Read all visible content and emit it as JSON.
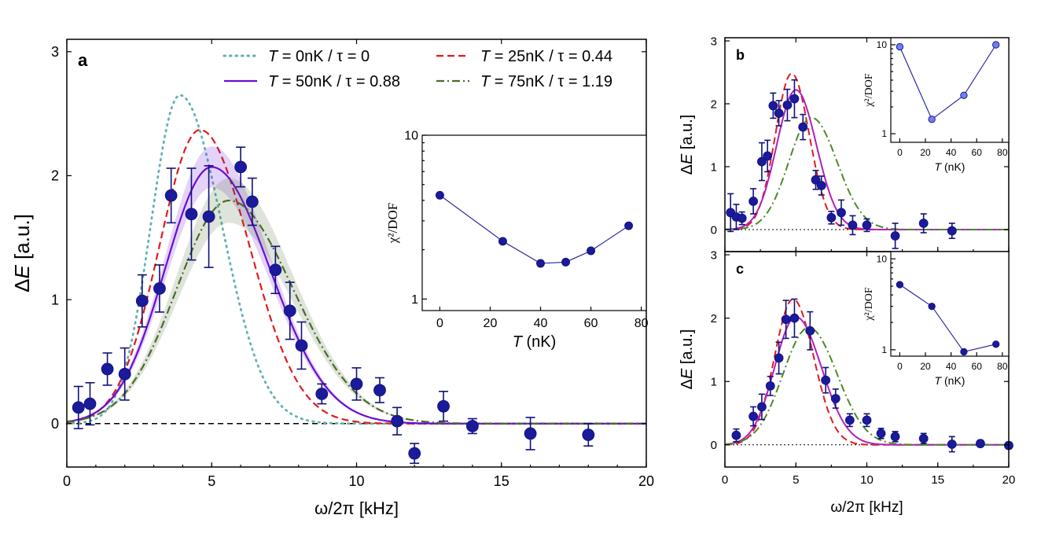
{
  "chart_data": [
    {
      "panel": "a",
      "type": "line",
      "xlabel": "ω/2π [kHz]",
      "ylabel_prefix": "Δ",
      "ylabel_var": "E",
      "ylabel_unit": "[a.u.]",
      "xlim": [
        0,
        20
      ],
      "ylim": [
        -0.35,
        3.1
      ],
      "xticks": [
        0,
        5,
        10,
        15,
        20
      ],
      "yticks": [
        0,
        1,
        2,
        3
      ],
      "baseline": 0,
      "legend_var": "T",
      "series": [
        {
          "name": " = 0nK / τ = 0",
          "style": "dotted",
          "color": "#5fb3b3",
          "model": {
            "A": 2.65,
            "mu": 3.9,
            "sl": 1.0,
            "sr": 1.45
          }
        },
        {
          "name": " = 25nK / τ = 0.44",
          "style": "dashed",
          "color": "#e31a1c",
          "model": {
            "A": 2.37,
            "mu": 4.6,
            "sl": 1.4,
            "sr": 1.7
          }
        },
        {
          "name": " = 50nK / τ = 0.88",
          "style": "solid",
          "color": "#6a0dd6",
          "model": {
            "A": 2.07,
            "mu": 5.0,
            "sl": 1.6,
            "sr": 2.0
          },
          "band": 0.08
        },
        {
          "name": " = 75nK / τ = 1.19",
          "style": "dashdot",
          "color": "#4a6b2a",
          "model": {
            "A": 1.8,
            "mu": 5.6,
            "sl": 1.8,
            "sr": 2.2
          },
          "band": 0.1
        }
      ],
      "points": {
        "x": [
          0.4,
          0.8,
          1.4,
          2.0,
          2.6,
          3.2,
          3.6,
          4.3,
          4.9,
          6.0,
          6.4,
          7.2,
          7.7,
          8.1,
          8.8,
          10.0,
          10.8,
          11.4,
          12.0,
          13.0,
          14.0,
          16.0,
          18.0
        ],
        "y": [
          0.13,
          0.16,
          0.44,
          0.4,
          0.99,
          1.09,
          1.84,
          1.69,
          1.67,
          2.07,
          1.79,
          1.24,
          0.91,
          0.63,
          0.24,
          0.32,
          0.27,
          0.02,
          -0.24,
          0.14,
          -0.02,
          -0.08,
          -0.09
        ],
        "err": [
          0.17,
          0.17,
          0.13,
          0.21,
          0.21,
          0.19,
          0.22,
          0.37,
          0.41,
          0.16,
          0.19,
          0.19,
          0.23,
          0.19,
          0.08,
          0.13,
          0.1,
          0.11,
          0.08,
          0.12,
          0.06,
          0.13,
          0.09
        ]
      },
      "inset": {
        "xlabel_var": "T",
        "xlabel_unit": " (nK)",
        "ylabel": "χ²/DOF",
        "xlim": [
          -7,
          82
        ],
        "ylim_log": [
          0.85,
          10
        ],
        "xticks": [
          0,
          20,
          40,
          60,
          80
        ],
        "yticks": [
          1,
          10
        ],
        "x": [
          0,
          25,
          40,
          50,
          60,
          75
        ],
        "y": [
          4.3,
          2.25,
          1.65,
          1.68,
          1.97,
          2.8
        ]
      }
    },
    {
      "panel": "b",
      "type": "line",
      "xlim": [
        0,
        20
      ],
      "ylim": [
        -0.35,
        3.05
      ],
      "xticks": [
        0,
        5,
        10,
        15,
        20
      ],
      "yticks": [
        0,
        1,
        2,
        3
      ],
      "ylabel_prefix": "Δ",
      "ylabel_var": "E",
      "ylabel_unit": "[a.u.]",
      "series": [
        {
          "style": "dashed",
          "color": "#e31a1c",
          "model": {
            "A": 2.48,
            "mu": 4.7,
            "sl": 1.15,
            "sr": 1.25
          }
        },
        {
          "style": "solid",
          "color": "#b020c0",
          "model": {
            "A": 2.22,
            "mu": 5.0,
            "sl": 1.35,
            "sr": 1.45
          }
        },
        {
          "style": "dashdot",
          "color": "#4a8a2a",
          "model": {
            "A": 1.78,
            "mu": 6.1,
            "sl": 1.6,
            "sr": 1.8
          }
        }
      ],
      "points": {
        "x": [
          0.4,
          0.8,
          1.2,
          2.0,
          2.6,
          3.0,
          3.4,
          3.8,
          4.4,
          4.9,
          5.5,
          6.4,
          6.8,
          7.5,
          8.2,
          9.0,
          10.0,
          12.0,
          14.0,
          16.0
        ],
        "y": [
          0.27,
          0.2,
          0.18,
          0.45,
          1.08,
          1.17,
          1.97,
          1.85,
          1.98,
          2.08,
          1.63,
          0.79,
          0.7,
          0.19,
          0.27,
          0.07,
          0.07,
          -0.1,
          0.1,
          -0.02
        ],
        "err": [
          0.3,
          0.2,
          0.1,
          0.2,
          0.3,
          0.25,
          0.2,
          0.2,
          0.25,
          0.3,
          0.2,
          0.15,
          0.15,
          0.1,
          0.2,
          0.15,
          0.1,
          0.2,
          0.15,
          0.12
        ]
      },
      "inset": {
        "xlabel_var": "T",
        "xlabel_unit": " (nK)",
        "ylabel": "χ²/DOF",
        "xlim": [
          -7,
          85
        ],
        "ylim_log": [
          0.8,
          12
        ],
        "xticks": [
          0,
          20,
          40,
          60,
          80
        ],
        "yticks": [
          1,
          10
        ],
        "x": [
          0,
          25,
          50,
          75
        ],
        "y": [
          9.5,
          1.45,
          2.7,
          10.0
        ]
      }
    },
    {
      "panel": "c",
      "type": "line",
      "xlabel": "ω/2π [kHz]",
      "xlim": [
        0,
        20
      ],
      "ylim": [
        -0.35,
        3.05
      ],
      "xticks": [
        0,
        5,
        10,
        15,
        20
      ],
      "yticks": [
        0,
        1,
        2,
        3
      ],
      "ylabel_prefix": "Δ",
      "ylabel_var": "E",
      "ylabel_unit": "[a.u.]",
      "series": [
        {
          "style": "dashed",
          "color": "#e31a1c",
          "model": {
            "A": 2.3,
            "mu": 4.8,
            "sl": 1.3,
            "sr": 1.45
          }
        },
        {
          "style": "solid",
          "color": "#b020c0",
          "model": {
            "A": 2.02,
            "mu": 5.0,
            "sl": 1.5,
            "sr": 1.8
          }
        },
        {
          "style": "dashdot",
          "color": "#4a8a2a",
          "model": {
            "A": 1.85,
            "mu": 5.9,
            "sl": 1.8,
            "sr": 2.0
          }
        }
      ],
      "points": {
        "x": [
          0.8,
          2.0,
          2.6,
          3.2,
          3.8,
          4.3,
          4.9,
          6.0,
          7.1,
          7.8,
          8.8,
          10.0,
          11.0,
          12.0,
          14.0,
          16.0,
          18.0,
          20.0
        ],
        "y": [
          0.15,
          0.45,
          0.6,
          0.93,
          1.37,
          1.98,
          2.0,
          1.8,
          1.02,
          0.73,
          0.39,
          0.39,
          0.18,
          0.13,
          0.1,
          0.01,
          0.02,
          -0.01
        ],
        "err": [
          0.1,
          0.15,
          0.2,
          0.15,
          0.25,
          0.3,
          0.3,
          0.3,
          0.2,
          0.15,
          0.1,
          0.1,
          0.08,
          0.08,
          0.08,
          0.12,
          0.05,
          0.05
        ]
      },
      "inset": {
        "xlabel_var": "T",
        "xlabel_unit": " (nK)",
        "ylabel": "χ²/DOF",
        "xlim": [
          -7,
          85
        ],
        "ylim_log": [
          0.85,
          12
        ],
        "xticks": [
          0,
          20,
          40,
          60,
          80
        ],
        "yticks": [
          1,
          10
        ],
        "x": [
          0,
          25,
          50,
          75
        ],
        "y": [
          5.2,
          3.0,
          0.95,
          1.15
        ]
      }
    }
  ],
  "panel_labels": {
    "a": "a",
    "b": "b",
    "c": "c"
  },
  "colors": {
    "marker_fill": "#1a1a9a",
    "marker_edge": "#10107a",
    "inset_b_marker": "#6f7ff0",
    "inset_line": "#1a1a9a"
  }
}
